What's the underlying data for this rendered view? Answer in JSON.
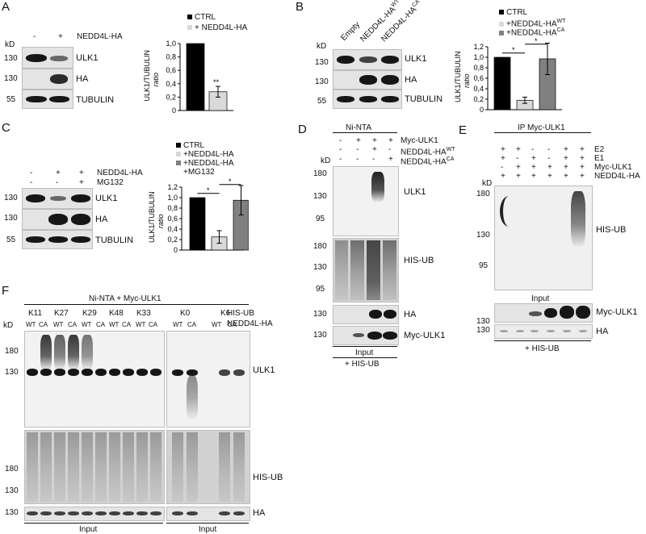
{
  "panels": {
    "A": "A",
    "B": "B",
    "C": "C",
    "D": "D",
    "E": "E",
    "F": "F"
  },
  "common": {
    "kd": "kD",
    "ulk1": "ULK1",
    "ha": "HA",
    "tubulin": "TUBULIN",
    "his_ub": "HIS-UB",
    "myc_ulk1": "Myc-ULK1",
    "input": "Input",
    "plus_his_ub": "+ HIS-UB",
    "ratio_label": "ULK1/TUBULIN",
    "ratio_sub": "ratio"
  },
  "panelA": {
    "cond_label": "NEDD4L-HA",
    "minus": "-",
    "plus": "+",
    "mw": [
      "130",
      "130",
      "55"
    ],
    "legend": [
      "CTRL",
      "+ NEDD4L-HA"
    ],
    "signif": "**",
    "yticks": [
      "0",
      "0,2",
      "0,4",
      "0,6",
      "0,8",
      "1,0"
    ]
  },
  "panelB": {
    "lanes": [
      "Empty",
      "NEDD4L-HA",
      "NEDD4L-HA"
    ],
    "lane_sup": [
      "",
      "WT",
      "CA"
    ],
    "mw": [
      "130",
      "130",
      "55"
    ],
    "legend": [
      "CTRL",
      "+NEDD4L-HA",
      "+NEDD4L-HA"
    ],
    "legend_sup": [
      "",
      "WT",
      "CA"
    ],
    "signif": [
      "*",
      "*"
    ],
    "yticks": [
      "0",
      "0,2",
      "0,4",
      "0,6",
      "0,8",
      "1,0",
      "1,2"
    ]
  },
  "panelC": {
    "row1": "NEDD4L-HA",
    "row2": "MG132",
    "row1_vals": [
      "-",
      "+",
      "+"
    ],
    "row2_vals": [
      "-",
      "-",
      "+"
    ],
    "mw": [
      "130",
      "130",
      "55"
    ],
    "legend": [
      "CTRL",
      "+NEDD4L-HA",
      "+NEDD4L-HA",
      "+MG132"
    ],
    "signif": [
      "*",
      "*"
    ],
    "yticks": [
      "0",
      "0,2",
      "0,4",
      "0,6",
      "0,8",
      "1,0",
      "1,2"
    ]
  },
  "panelD": {
    "header": "Ni-NTA",
    "rows": [
      "Myc-ULK1",
      "NEDD4L-HA",
      "NEDD4L-HA"
    ],
    "row_sup": [
      "",
      "WT",
      "CA"
    ],
    "vals": [
      [
        "-",
        "+",
        "+",
        "+"
      ],
      [
        "-",
        "-",
        "+",
        "-"
      ],
      [
        "-",
        "-",
        "-",
        "+"
      ]
    ],
    "mw_ulk1": [
      "180",
      "130",
      "95"
    ],
    "mw_hisub": [
      "180",
      "130",
      "95"
    ],
    "mw_ha": [
      "130"
    ],
    "mw_myc": [
      "130"
    ]
  },
  "panelE": {
    "header": "IP Myc-ULK1",
    "rows": [
      "E2",
      "E1",
      "Myc-ULK1",
      "NEDD4L-HA"
    ],
    "vals": [
      [
        "+",
        "+",
        "-",
        "-",
        "+",
        "+"
      ],
      [
        "+",
        "-",
        "+",
        "-",
        "+",
        "+"
      ],
      [
        "-",
        "+",
        "+",
        "+",
        "+",
        "+"
      ],
      [
        "+",
        "+",
        "+",
        "+",
        "+",
        "+"
      ]
    ],
    "mw": [
      "180",
      "130",
      "95"
    ],
    "mw_input": [
      "130",
      "130"
    ]
  },
  "panelF": {
    "header": "Ni-NTA + Myc-ULK1",
    "groups": [
      "K11",
      "K27",
      "K29",
      "K48",
      "K33",
      "K0",
      "K6"
    ],
    "sub": [
      "WT",
      "CA"
    ],
    "mw_top": [
      "180",
      "130"
    ],
    "mw_mid": [
      "180",
      "130"
    ],
    "mw_ha": [
      "130"
    ]
  },
  "chart_data": [
    {
      "type": "bar",
      "panel": "A",
      "categories": [
        "CTRL",
        "+ NEDD4L-HA"
      ],
      "values": [
        1.0,
        0.28
      ],
      "errors": [
        0,
        0.08
      ],
      "ylabel": "ULK1/TUBULIN ratio",
      "ylim": [
        0,
        1.0
      ]
    },
    {
      "type": "bar",
      "panel": "B",
      "categories": [
        "CTRL",
        "+NEDD4L-HA WT",
        "+NEDD4L-HA CA"
      ],
      "values": [
        1.0,
        0.18,
        0.97
      ],
      "errors": [
        0,
        0.06,
        0.3
      ],
      "ylabel": "ULK1/TUBULIN ratio",
      "ylim": [
        0,
        1.2
      ]
    },
    {
      "type": "bar",
      "panel": "C",
      "categories": [
        "CTRL",
        "+NEDD4L-HA",
        "+NEDD4L-HA +MG132"
      ],
      "values": [
        1.0,
        0.25,
        0.95
      ],
      "errors": [
        0,
        0.12,
        0.28
      ],
      "ylabel": "ULK1/TUBULIN ratio",
      "ylim": [
        0,
        1.2
      ]
    }
  ],
  "colors": {
    "ctrl": "#000000",
    "nedd": "#d9d9d9",
    "ca": "#808080"
  }
}
